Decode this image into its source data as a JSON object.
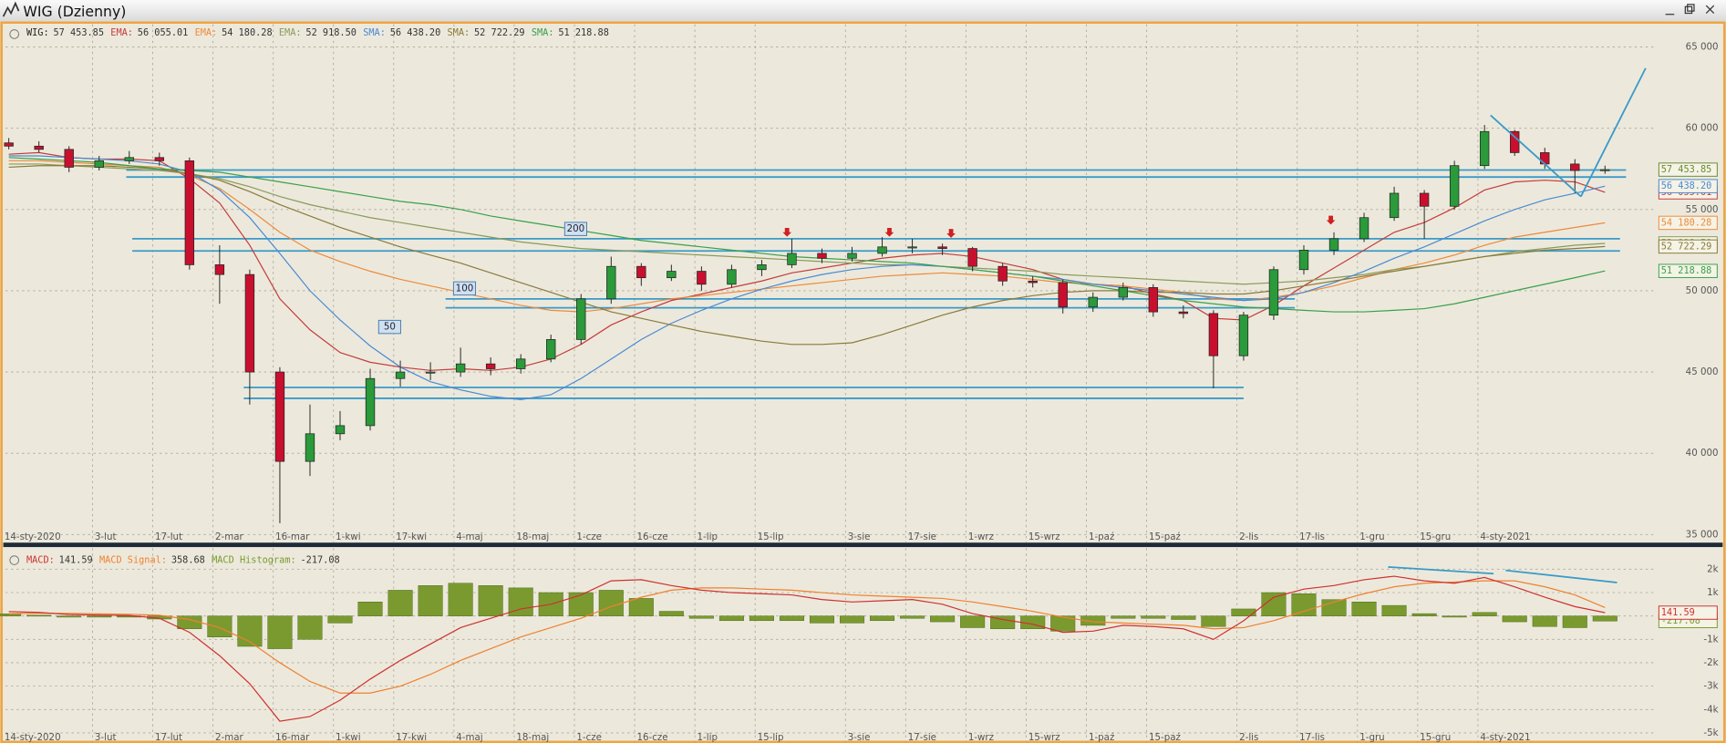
{
  "window": {
    "title": "WIG (Dzienny)"
  },
  "chart_data": [
    {
      "type": "candlestick",
      "grid": true,
      "categories": [
        "14-sty-2020",
        null,
        null,
        "3-lut",
        null,
        "17-lut",
        null,
        "2-mar",
        null,
        "16-mar",
        null,
        "1-kwi",
        null,
        "17-kwi",
        null,
        "4-maj",
        null,
        "18-maj",
        null,
        "1-cze",
        null,
        "16-cze",
        null,
        "1-lip",
        null,
        "15-lip",
        null,
        null,
        "3-sie",
        null,
        "17-sie",
        null,
        "1-wrz",
        null,
        "15-wrz",
        null,
        "1-paź",
        null,
        "15-paź",
        null,
        null,
        "2-lis",
        null,
        "17-lis",
        null,
        "1-gru",
        null,
        "15-gru",
        null,
        "4-sty-2021",
        null,
        null,
        null,
        null
      ],
      "ylim": [
        34500,
        66400
      ],
      "yticks": [
        {
          "value": 35000,
          "label": "35 000"
        },
        {
          "value": 40000,
          "label": "40 000"
        },
        {
          "value": 45000,
          "label": "45 000"
        },
        {
          "value": 50000,
          "label": "50 000"
        },
        {
          "value": 55000,
          "label": "55 000"
        },
        {
          "value": 60000,
          "label": "60 000"
        },
        {
          "value": 65000,
          "label": "65 000"
        }
      ],
      "series": [
        {
          "name": "WIG:",
          "type": "candlestick",
          "color": "#222222",
          "box_color": "#6a8a30",
          "up_color": "#2a9a3a",
          "down_color": "#c8102e",
          "last_value_label": "57 453.85",
          "open": [
            59100,
            58900,
            58700,
            57600,
            58000,
            58200,
            58000,
            51600,
            51000,
            45000,
            39500,
            41200,
            41700,
            44600,
            45000,
            45000,
            45500,
            45200,
            45800,
            47000,
            49500,
            51500,
            50800,
            51200,
            50400,
            51300,
            51600,
            52300,
            52000,
            52300,
            52700,
            52700,
            52600,
            51500,
            50600,
            50500,
            49000,
            49600,
            50200,
            48700,
            48600,
            46000,
            48500,
            51300,
            52500,
            53200,
            54500,
            56000,
            55200,
            57700,
            59800,
            58500,
            57800,
            57400
          ],
          "high": [
            59400,
            59200,
            58900,
            58300,
            58600,
            58500,
            58200,
            52800,
            51300,
            45300,
            43000,
            42600,
            45200,
            45700,
            45600,
            46500,
            45900,
            46100,
            47300,
            49800,
            52100,
            51700,
            51600,
            51500,
            51600,
            51900,
            53200,
            52600,
            52700,
            53300,
            53200,
            52900,
            52700,
            51700,
            50900,
            50700,
            49900,
            50500,
            50400,
            49100,
            48800,
            48700,
            51500,
            52800,
            53600,
            54800,
            56400,
            56200,
            58000,
            60200,
            59900,
            58800,
            58100,
            57700
          ],
          "low": [
            58700,
            58500,
            57300,
            57400,
            57800,
            57700,
            51300,
            49200,
            43000,
            35700,
            38600,
            40800,
            41400,
            44100,
            44500,
            44700,
            44800,
            44900,
            45600,
            46700,
            49200,
            50300,
            50600,
            50000,
            50200,
            50900,
            51400,
            51700,
            51800,
            52100,
            52300,
            52200,
            51200,
            50300,
            50200,
            48600,
            48700,
            49400,
            48400,
            48300,
            44000,
            45700,
            48200,
            51000,
            52200,
            53000,
            54300,
            53200,
            55000,
            57500,
            58300,
            57500,
            56000,
            57200
          ],
          "close": [
            58900,
            58700,
            57600,
            58000,
            58200,
            58000,
            51600,
            51000,
            45000,
            39500,
            41200,
            41700,
            44600,
            45000,
            45000,
            45500,
            45200,
            45800,
            47000,
            49500,
            51500,
            50800,
            51200,
            50400,
            51300,
            51600,
            52300,
            52000,
            52300,
            52700,
            52700,
            52600,
            51500,
            50600,
            50500,
            49000,
            49600,
            50200,
            48700,
            48600,
            46000,
            48500,
            51300,
            52500,
            53200,
            54500,
            56000,
            55200,
            57700,
            59800,
            58500,
            57800,
            57400,
            57453.85
          ]
        },
        {
          "name": "EMA:",
          "type": "line",
          "color": "#c43c3c",
          "last_value_label": "56 055.01",
          "values": [
            58400,
            58500,
            58200,
            58100,
            58100,
            58000,
            56900,
            55400,
            52800,
            49500,
            47600,
            46200,
            45600,
            45300,
            45100,
            45200,
            45100,
            45300,
            45800,
            46700,
            47900,
            48700,
            49400,
            49800,
            50200,
            50600,
            51100,
            51400,
            51700,
            52000,
            52200,
            52300,
            52100,
            51700,
            51300,
            50700,
            50400,
            50300,
            49800,
            49400,
            48300,
            48200,
            49100,
            50300,
            51400,
            52500,
            53600,
            54200,
            55100,
            56200,
            56700,
            56800,
            56700,
            56055.01
          ]
        },
        {
          "name": "EMA:",
          "type": "line",
          "color": "#ee8a3a",
          "last_value_label": "54 180.28",
          "values": [
            58000,
            58000,
            57900,
            57800,
            57700,
            57600,
            57100,
            56300,
            55000,
            53600,
            52500,
            51800,
            51200,
            50700,
            50300,
            49900,
            49500,
            49100,
            48800,
            48700,
            48900,
            49200,
            49500,
            49700,
            49900,
            50100,
            50300,
            50500,
            50700,
            50900,
            51000,
            51100,
            51000,
            50900,
            50700,
            50500,
            50400,
            50300,
            50100,
            49900,
            49500,
            49400,
            49600,
            49900,
            50300,
            50800,
            51300,
            51700,
            52200,
            52800,
            53300,
            53600,
            53900,
            54180.28
          ]
        },
        {
          "name": "EMA:",
          "type": "line",
          "color": "#8a9a5a",
          "last_value_label": "52 918.50",
          "values": [
            57800,
            57800,
            57700,
            57600,
            57500,
            57400,
            57200,
            56900,
            56400,
            55800,
            55300,
            54900,
            54500,
            54200,
            53900,
            53600,
            53300,
            53000,
            52800,
            52600,
            52500,
            52400,
            52300,
            52200,
            52100,
            52000,
            51900,
            51800,
            51700,
            51600,
            51600,
            51500,
            51400,
            51300,
            51200,
            51000,
            50900,
            50800,
            50700,
            50600,
            50500,
            50400,
            50500,
            50600,
            50800,
            51000,
            51300,
            51500,
            51800,
            52100,
            52400,
            52600,
            52800,
            52918.5
          ]
        },
        {
          "name": "SMA:",
          "type": "line",
          "color": "#4a8ad4",
          "last_value_label": "56 438.20",
          "values": [
            58300,
            58300,
            58200,
            58100,
            58000,
            57800,
            57300,
            56200,
            54500,
            52300,
            50000,
            48200,
            46600,
            45300,
            44400,
            43900,
            43500,
            43300,
            43600,
            44600,
            45800,
            47000,
            48000,
            48800,
            49500,
            50100,
            50600,
            51000,
            51300,
            51500,
            51600,
            51500,
            51300,
            51100,
            50900,
            50700,
            50400,
            50200,
            50000,
            49800,
            49600,
            49400,
            49500,
            49900,
            50500,
            51200,
            52000,
            52700,
            53500,
            54300,
            55000,
            55600,
            56000,
            56438.2
          ]
        },
        {
          "name": "SMA:",
          "type": "line",
          "color": "#8a7a3a",
          "last_value_label": "52 722.29",
          "values": [
            57600,
            57700,
            57700,
            57700,
            57600,
            57500,
            57200,
            56800,
            56100,
            55300,
            54600,
            53900,
            53300,
            52700,
            52200,
            51700,
            51100,
            50500,
            49900,
            49300,
            48700,
            48300,
            47900,
            47500,
            47200,
            46900,
            46700,
            46700,
            46800,
            47300,
            47900,
            48500,
            49000,
            49400,
            49700,
            49900,
            50000,
            50000,
            49900,
            49900,
            49800,
            49800,
            50000,
            50300,
            50600,
            50900,
            51200,
            51500,
            51800,
            52100,
            52300,
            52500,
            52600,
            52722.29
          ]
        },
        {
          "name": "SMA:",
          "type": "line",
          "color": "#3aa04a",
          "last_value_label": "51 218.88",
          "values": [
            58200,
            58100,
            58000,
            57900,
            57700,
            57500,
            57400,
            57300,
            57000,
            56700,
            56400,
            56100,
            55800,
            55500,
            55300,
            55000,
            54600,
            54300,
            54000,
            53700,
            53400,
            53100,
            52900,
            52700,
            52500,
            52300,
            52100,
            52000,
            51900,
            51800,
            51700,
            51500,
            51300,
            51100,
            50900,
            50600,
            50300,
            50000,
            49700,
            49400,
            49200,
            49000,
            48900,
            48800,
            48700,
            48700,
            48800,
            48900,
            49200,
            49600,
            50000,
            50400,
            50800,
            51218.88
          ]
        }
      ],
      "levels": [
        {
          "value": 57430,
          "x": [
            3.9,
            53.7
          ]
        },
        {
          "value": 57000,
          "x": [
            3.9,
            53.7
          ]
        },
        {
          "value": 53200,
          "x": [
            4.1,
            53.5
          ]
        },
        {
          "value": 52450,
          "x": [
            4.1,
            53.5
          ]
        },
        {
          "value": 49500,
          "x": [
            14.5,
            42.7
          ]
        },
        {
          "value": 48950,
          "x": [
            14.5,
            42.7
          ]
        },
        {
          "value": 44050,
          "x": [
            7.8,
            41
          ]
        },
        {
          "value": 43380,
          "x": [
            7.8,
            41
          ]
        }
      ],
      "trendlines": [
        {
          "x": [
            49.2,
            52.2
          ],
          "y": [
            60800,
            55800
          ]
        },
        {
          "x": [
            52.2,
            54.35
          ],
          "y": [
            55800,
            63700
          ]
        }
      ],
      "annotations": [
        "200",
        "100",
        "50"
      ]
    },
    {
      "type": "line",
      "grid": true,
      "ylim": [
        -5430,
        2900
      ],
      "yticks": [
        {
          "value": 2000,
          "label": "2k"
        },
        {
          "value": 1000,
          "label": "1k"
        },
        {
          "value": 0,
          "label": "0k"
        },
        {
          "value": -1000,
          "label": "-1k"
        },
        {
          "value": -2000,
          "label": "-2k"
        },
        {
          "value": -3000,
          "label": "-3k"
        },
        {
          "value": -4000,
          "label": "-4k"
        },
        {
          "value": -5000,
          "label": "-5k"
        }
      ],
      "series": [
        {
          "name": "MACD Histogram:",
          "type": "bar",
          "color": "#7a9a30",
          "last_value_label": "-217.08",
          "axis_label": true,
          "values": [
            90,
            30,
            -50,
            -50,
            -50,
            -130,
            -550,
            -900,
            -1300,
            -1400,
            -1000,
            -300,
            600,
            1100,
            1300,
            1400,
            1300,
            1200,
            1000,
            1000,
            1100,
            750,
            200,
            -100,
            -200,
            -200,
            -200,
            -300,
            -300,
            -200,
            -100,
            -250,
            -500,
            -550,
            -550,
            -650,
            -400,
            -100,
            -100,
            -150,
            -450,
            300,
            1000,
            950,
            700,
            600,
            450,
            100,
            -50,
            150,
            -250,
            -450,
            -500,
            -217.08
          ]
        },
        {
          "name": "MACD Signal:",
          "type": "line",
          "color": "#f08030",
          "last_value_label": "358.68",
          "axis_label": false,
          "values": [
            100,
            120,
            110,
            90,
            70,
            30,
            -150,
            -500,
            -1100,
            -2000,
            -2800,
            -3300,
            -3300,
            -3000,
            -2500,
            -1900,
            -1400,
            -900,
            -500,
            -100,
            400,
            800,
            1100,
            1200,
            1200,
            1150,
            1100,
            1000,
            900,
            850,
            800,
            750,
            600,
            400,
            200,
            -50,
            -250,
            -300,
            -350,
            -400,
            -550,
            -500,
            -200,
            200,
            600,
            950,
            1250,
            1400,
            1450,
            1500,
            1500,
            1250,
            900,
            358.68
          ]
        },
        {
          "name": "MACD:",
          "type": "line",
          "color": "#d03030",
          "last_value_label": "141.59",
          "axis_label": true,
          "values": [
            190,
            150,
            60,
            40,
            20,
            -100,
            -700,
            -1700,
            -2900,
            -4500,
            -4300,
            -3600,
            -2700,
            -1900,
            -1200,
            -500,
            -100,
            300,
            500,
            900,
            1500,
            1550,
            1300,
            1100,
            1000,
            950,
            900,
            700,
            600,
            650,
            700,
            500,
            100,
            -150,
            -350,
            -700,
            -650,
            -400,
            -450,
            -550,
            -1000,
            -200,
            800,
            1150,
            1300,
            1550,
            1700,
            1500,
            1400,
            1650,
            1250,
            800,
            400,
            141.59
          ]
        }
      ],
      "legend_order": [
        2,
        1,
        0
      ],
      "trendlines": [
        {
          "x": [
            45.8,
            49.3
          ],
          "y": [
            2095,
            1810
          ]
        },
        {
          "x": [
            49.7,
            53.4
          ],
          "y": [
            1950,
            1430
          ]
        }
      ]
    }
  ]
}
